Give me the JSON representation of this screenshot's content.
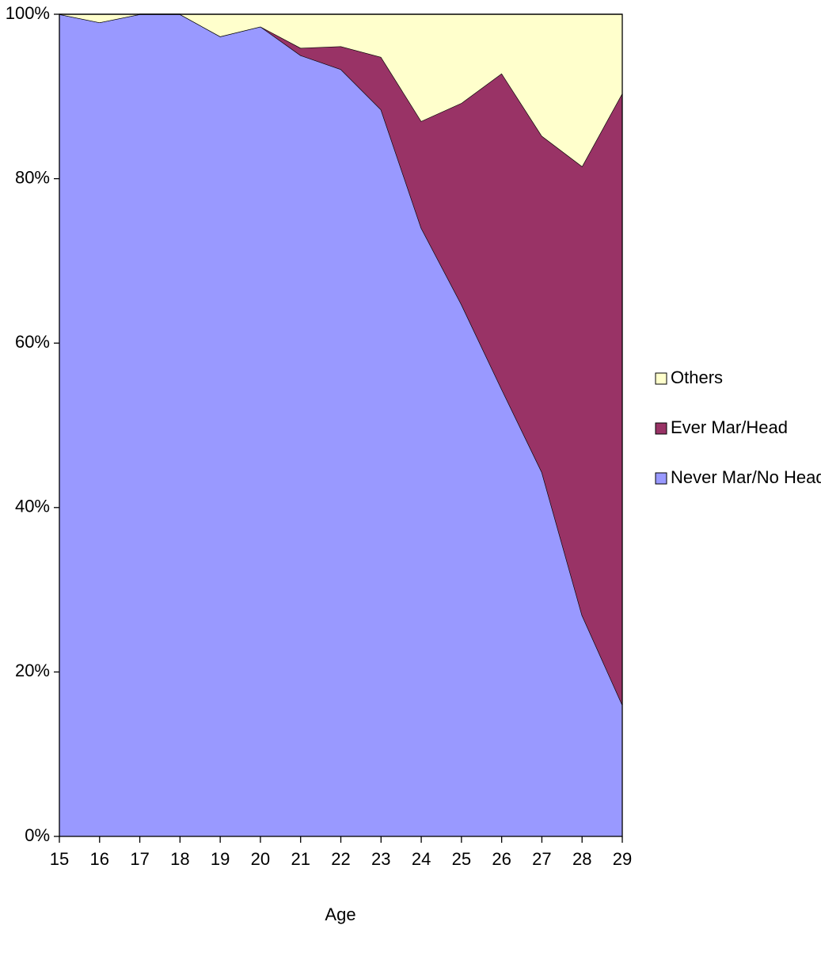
{
  "chart_data": {
    "type": "area",
    "stacked": true,
    "x_label": "Age",
    "x": [
      15,
      16,
      17,
      18,
      19,
      20,
      21,
      22,
      23,
      24,
      25,
      26,
      27,
      28,
      29
    ],
    "xlim": [
      15,
      29
    ],
    "xticks": [
      15,
      16,
      17,
      18,
      19,
      20,
      21,
      22,
      23,
      24,
      25,
      26,
      27,
      28,
      29
    ],
    "ylim": [
      0,
      100
    ],
    "yticks": [
      {
        "value": 0,
        "label": "0%"
      },
      {
        "value": 20,
        "label": "20%"
      },
      {
        "value": 40,
        "label": "40%"
      },
      {
        "value": 60,
        "label": "60%"
      },
      {
        "value": 80,
        "label": "80%"
      },
      {
        "value": 100,
        "label": "100%"
      }
    ],
    "legend": "right",
    "series": [
      {
        "name": "Never Mar/No Head",
        "color": "#9999ff",
        "values": [
          100,
          99.0,
          100,
          100,
          97.3,
          98.5,
          95.0,
          93.3,
          88.4,
          74.0,
          64.7,
          54.4,
          44.3,
          26.9,
          16.0
        ]
      },
      {
        "name": "Ever Mar/Head",
        "color": "#993366",
        "values": [
          0,
          0,
          0,
          0,
          0,
          0,
          0.9,
          2.8,
          6.4,
          13.0,
          24.5,
          38.4,
          40.9,
          54.6,
          74.4
        ]
      },
      {
        "name": "Others",
        "color": "#ffffcc",
        "values": [
          0,
          1.0,
          0,
          0,
          2.7,
          1.5,
          4.1,
          3.9,
          5.2,
          13.0,
          10.8,
          7.2,
          14.8,
          18.5,
          9.6
        ]
      }
    ]
  }
}
